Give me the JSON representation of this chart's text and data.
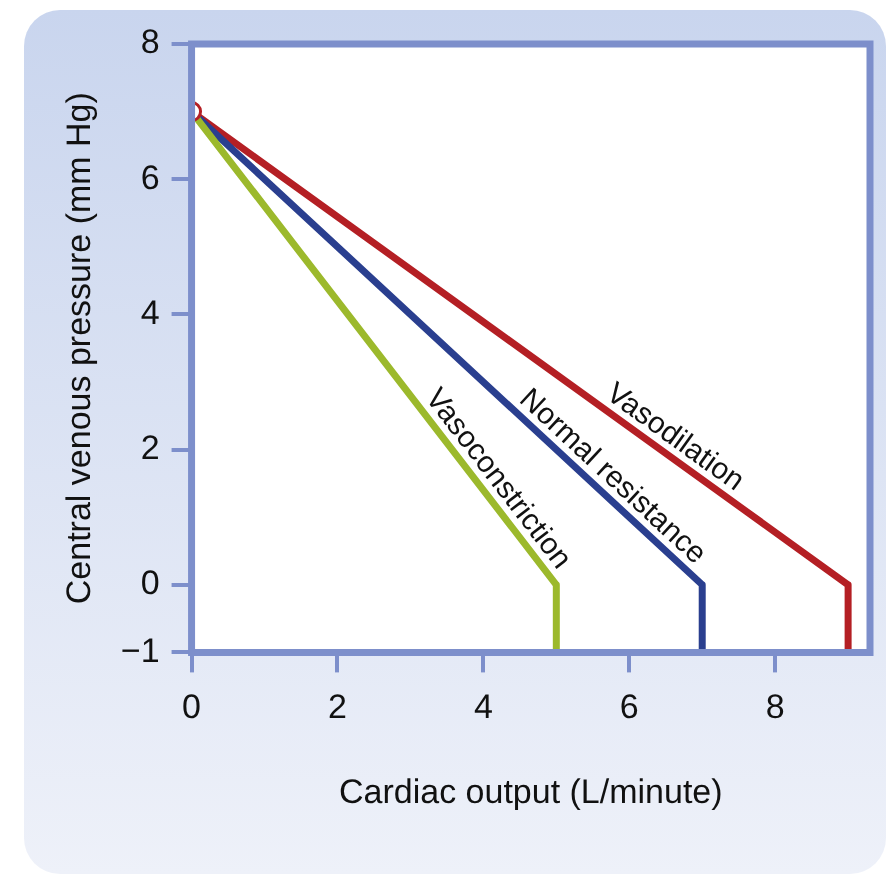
{
  "chart_data": {
    "type": "line",
    "xlabel": "Cardiac output (L/minute)",
    "ylabel": "Central venous pressure (mm Hg)",
    "xlim": [
      0,
      9.3
    ],
    "xticks": [
      0,
      2,
      4,
      6,
      8
    ],
    "ylim": [
      -1,
      8
    ],
    "yticks": [
      {
        "value": -1,
        "label": "−1"
      },
      0,
      2,
      4,
      6,
      8
    ],
    "grid": false,
    "legend": false,
    "line_style": "solid",
    "series": [
      {
        "name": "Vasoconstriction",
        "color": "#9cb92c",
        "x": [
          0,
          5,
          5
        ],
        "values": [
          7,
          0,
          -1
        ]
      },
      {
        "name": "Normal resistance",
        "color": "#2a3f8f",
        "x": [
          0,
          7,
          7
        ],
        "values": [
          7,
          0,
          -1
        ]
      },
      {
        "name": "Vasodilation",
        "color": "#b41f24",
        "x": [
          0,
          9,
          9
        ],
        "values": [
          7,
          0,
          -1
        ]
      },
      {
        "type": "scatter",
        "marker": "circle",
        "color": "#b41f24",
        "x": [
          0
        ],
        "values": [
          7
        ]
      }
    ]
  }
}
